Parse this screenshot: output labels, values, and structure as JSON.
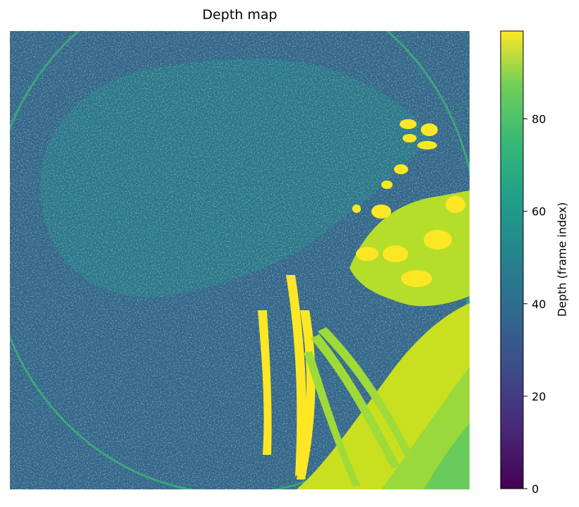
{
  "chart_data": {
    "type": "heatmap",
    "title": "Depth map",
    "colorbar": {
      "label": "Depth (frame index)",
      "colormap": "viridis",
      "range": [
        0,
        99
      ],
      "ticks": [
        0,
        20,
        40,
        60,
        80
      ],
      "tick_labels": [
        "0",
        "20",
        "40",
        "60",
        "80"
      ]
    },
    "axes_visible": false,
    "grid": false,
    "description_regions": [
      {
        "region": "background",
        "depth_approx": 35
      },
      {
        "region": "leaf-texture",
        "depth_approx": 55
      },
      {
        "region": "stems-and-flowers",
        "depth_approx": 95
      },
      {
        "region": "lower-right-foreground",
        "depth_approx": 88
      }
    ]
  },
  "colors": {
    "viridis_0": "#440154",
    "viridis_25": "#3b528b",
    "viridis_50": "#21918c",
    "viridis_75": "#5ec962",
    "viridis_100": "#fde725"
  }
}
